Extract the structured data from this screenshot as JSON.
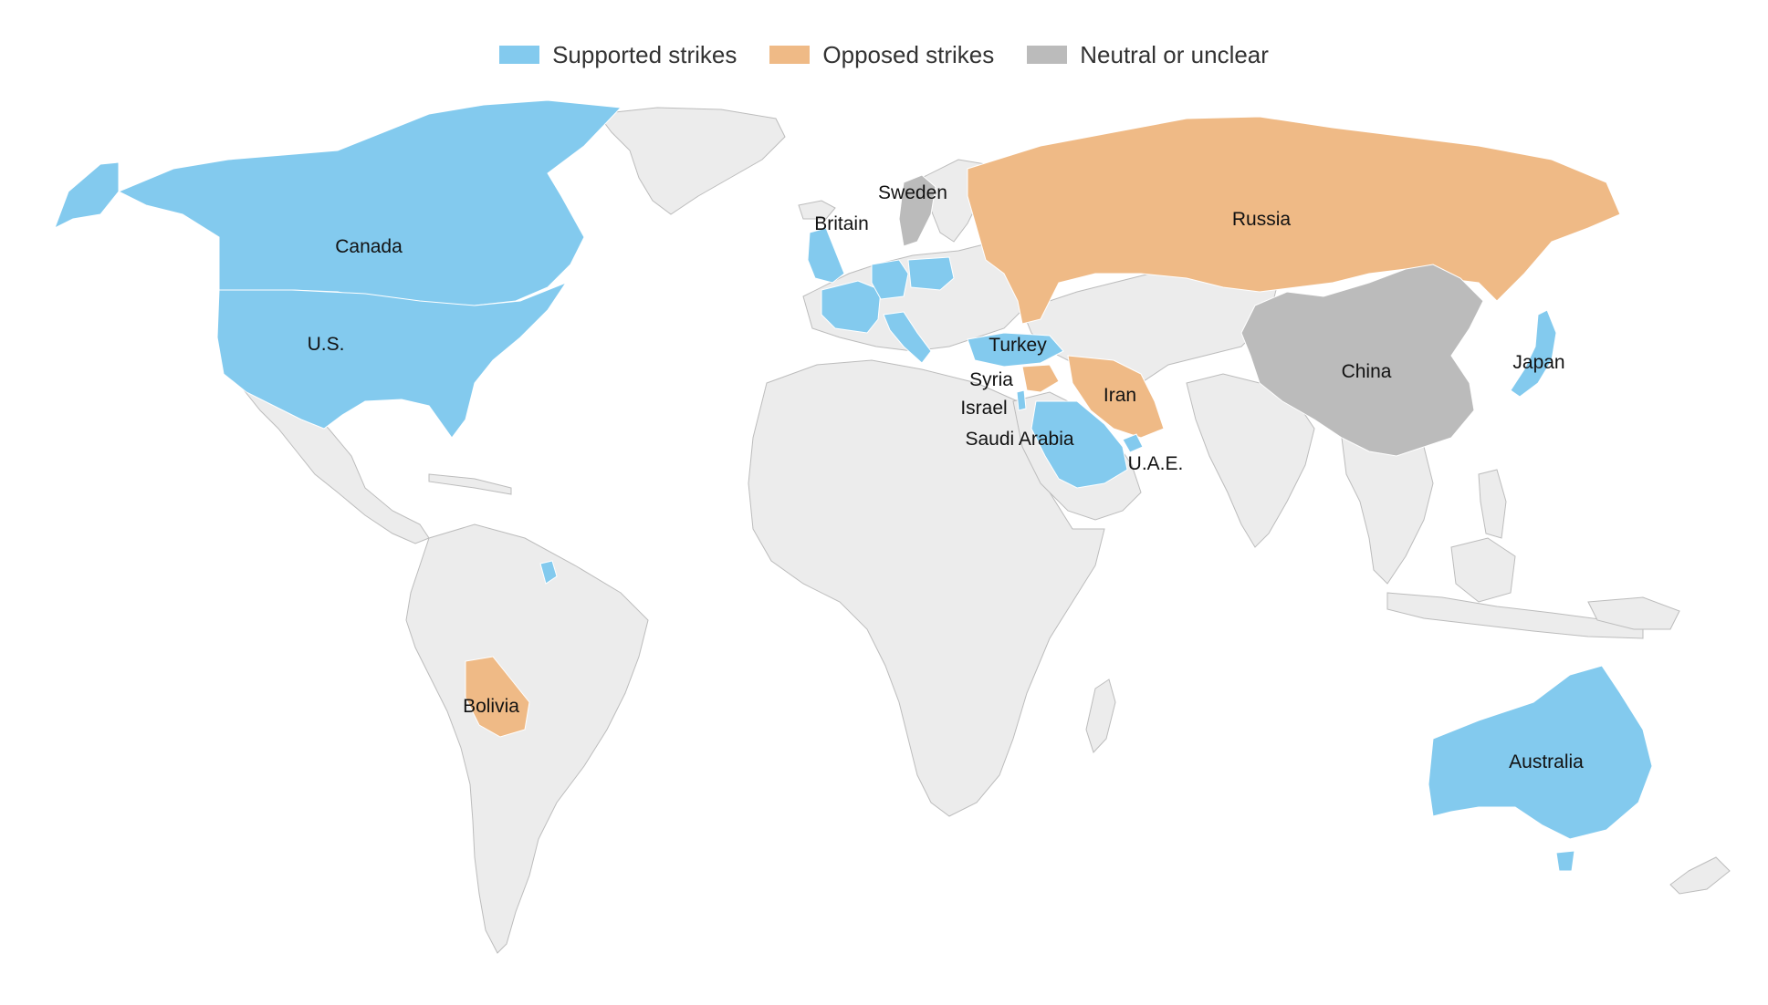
{
  "legend": {
    "supported": {
      "label": "Supported strikes",
      "color": "#83caee"
    },
    "opposed": {
      "label": "Opposed strikes",
      "color": "#efba86"
    },
    "neutral": {
      "label": "Neutral or unclear",
      "color": "#bbbbbb"
    }
  },
  "base_land_color": "#ececec",
  "base_border_color": "#bcbcbc",
  "countries": {
    "canada": {
      "label": "Canada",
      "stance": "supported"
    },
    "us": {
      "label": "U.S.",
      "stance": "supported"
    },
    "britain": {
      "label": "Britain",
      "stance": "supported"
    },
    "sweden": {
      "label": "Sweden",
      "stance": "neutral"
    },
    "russia": {
      "label": "Russia",
      "stance": "opposed"
    },
    "turkey": {
      "label": "Turkey",
      "stance": "supported"
    },
    "syria": {
      "label": "Syria",
      "stance": "opposed"
    },
    "israel": {
      "label": "Israel",
      "stance": "supported"
    },
    "iran": {
      "label": "Iran",
      "stance": "opposed"
    },
    "saudi_arabia": {
      "label": "Saudi Arabia",
      "stance": "supported"
    },
    "uae": {
      "label": "U.A.E.",
      "stance": "supported"
    },
    "china": {
      "label": "China",
      "stance": "neutral"
    },
    "japan": {
      "label": "Japan",
      "stance": "supported"
    },
    "bolivia": {
      "label": "Bolivia",
      "stance": "opposed"
    },
    "australia": {
      "label": "Australia",
      "stance": "supported"
    },
    "france": {
      "stance": "supported"
    },
    "germany": {
      "stance": "supported"
    },
    "poland": {
      "stance": "supported"
    },
    "italy": {
      "stance": "supported"
    },
    "french_guiana": {
      "stance": "supported"
    }
  }
}
